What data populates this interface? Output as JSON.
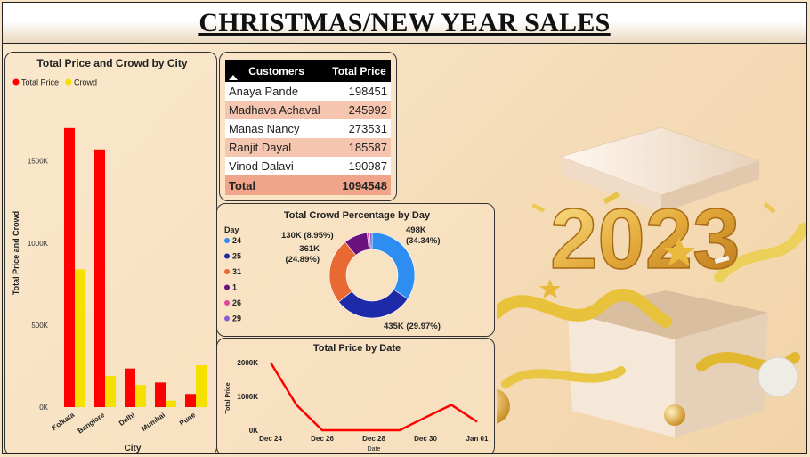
{
  "header": {
    "title": "CHRISTMAS/NEW YEAR SALES"
  },
  "customers_table": {
    "headers": [
      "Customers",
      "Total Price"
    ],
    "rows": [
      {
        "customer": "Anaya Pande",
        "total_price": "198451"
      },
      {
        "customer": "Madhava Achaval",
        "total_price": "245992"
      },
      {
        "customer": "Manas Nancy",
        "total_price": "273531"
      },
      {
        "customer": "Ranjit Dayal",
        "total_price": "185587"
      },
      {
        "customer": "Vinod Dalavi",
        "total_price": "190987"
      }
    ],
    "total_label": "Total",
    "total_value": "1094548"
  },
  "decoration": {
    "big_number": "2023"
  },
  "colors": {
    "total_price": "#ff0000",
    "crowd": "#f5e000",
    "table_header": "#000000",
    "table_row_alt": "#f5c5b0",
    "table_total": "#f0a48a"
  },
  "chart_data": [
    {
      "type": "bar",
      "title": "Total Price and Crowd by City",
      "xlabel": "City",
      "ylabel": "Total Price and Crowd",
      "categories": [
        "Kolkata",
        "Banglore",
        "Delhi",
        "Mumbai",
        "Pune"
      ],
      "series": [
        {
          "name": "Total Price",
          "values": [
            1700000,
            1570000,
            235000,
            150000,
            80000
          ]
        },
        {
          "name": "Crowd",
          "values": [
            840000,
            190000,
            135000,
            40000,
            255000
          ]
        }
      ],
      "ylim": [
        0,
        1900000
      ],
      "yticks": [
        0,
        500000,
        1000000,
        1500000
      ],
      "ytick_labels": [
        "0K",
        "500K",
        "1000K",
        "1500K"
      ],
      "legend": "top-left"
    },
    {
      "type": "pie",
      "title": "Total Crowd Percentage by Day",
      "legend_title": "Day",
      "legend": "left",
      "slices": [
        {
          "label": "24",
          "value": 498,
          "percent": 34.34,
          "color": "#2e8df0",
          "data_label": "498K\n(34.34%)"
        },
        {
          "label": "25",
          "value": 435,
          "percent": 29.97,
          "color": "#1e2aa8",
          "data_label": "435K (29.97%)"
        },
        {
          "label": "31",
          "value": 361,
          "percent": 24.89,
          "color": "#e86a32",
          "data_label": "361K\n(24.89%)"
        },
        {
          "label": "1",
          "value": 130,
          "percent": 8.95,
          "color": "#6a1280",
          "data_label": "130K (8.95%)"
        },
        {
          "label": "26",
          "value": 14,
          "percent": 0.97,
          "color": "#e0489a",
          "data_label": ""
        },
        {
          "label": "29",
          "value": 13,
          "percent": 0.88,
          "color": "#8a5cd6",
          "data_label": ""
        }
      ]
    },
    {
      "type": "line",
      "title": "Total Price by Date",
      "xlabel": "Date",
      "ylabel": "Total Price",
      "x": [
        "Dec 24",
        "Dec 25",
        "Dec 26",
        "Dec 27",
        "Dec 28",
        "Dec 29",
        "Dec 30",
        "Dec 31",
        "Jan 01"
      ],
      "xtick_labels": [
        "Dec 24",
        "Dec 26",
        "Dec 28",
        "Dec 30",
        "Jan 01"
      ],
      "series": [
        {
          "values": [
            2000000,
            750000,
            0,
            0,
            0,
            0,
            380000,
            750000,
            250000
          ]
        }
      ],
      "ylim": [
        0,
        2000000
      ],
      "yticks": [
        0,
        1000000,
        2000000
      ],
      "ytick_labels": [
        "0K",
        "1000K",
        "2000K"
      ],
      "line_color": "#ff0000"
    }
  ]
}
